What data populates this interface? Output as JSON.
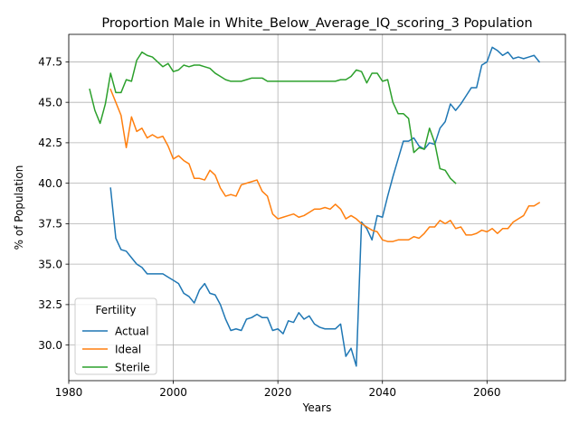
{
  "chart_data": {
    "type": "line",
    "title": "Proportion Male in White_Below_Average_IQ_scoring_3 Population",
    "xlabel": "Years",
    "ylabel": "% of Population",
    "xlim": [
      1980,
      2075
    ],
    "ylim": [
      27.8,
      49.2
    ],
    "xticks": [
      1980,
      2000,
      2020,
      2040,
      2060
    ],
    "yticks": [
      30.0,
      32.5,
      35.0,
      37.5,
      40.0,
      42.5,
      45.0,
      47.5
    ],
    "grid": true,
    "legend": {
      "title": "Fertility",
      "position": "lower-left"
    },
    "series": [
      {
        "name": "Actual",
        "color": "#1f77b4",
        "points": [
          [
            1988,
            39.7
          ],
          [
            1989,
            36.6
          ],
          [
            1990,
            35.9
          ],
          [
            1991,
            35.8
          ],
          [
            1992,
            35.4
          ],
          [
            1993,
            35.0
          ],
          [
            1994,
            34.8
          ],
          [
            1995,
            34.4
          ],
          [
            1996,
            34.4
          ],
          [
            1997,
            34.4
          ],
          [
            1998,
            34.4
          ],
          [
            1999,
            34.2
          ],
          [
            2000,
            34.0
          ],
          [
            2001,
            33.8
          ],
          [
            2002,
            33.2
          ],
          [
            2003,
            33.0
          ],
          [
            2004,
            32.6
          ],
          [
            2005,
            33.4
          ],
          [
            2006,
            33.8
          ],
          [
            2007,
            33.2
          ],
          [
            2008,
            33.1
          ],
          [
            2009,
            32.5
          ],
          [
            2010,
            31.6
          ],
          [
            2011,
            30.9
          ],
          [
            2012,
            31.0
          ],
          [
            2013,
            30.9
          ],
          [
            2014,
            31.6
          ],
          [
            2015,
            31.7
          ],
          [
            2016,
            31.9
          ],
          [
            2017,
            31.7
          ],
          [
            2018,
            31.7
          ],
          [
            2019,
            30.9
          ],
          [
            2020,
            31.0
          ],
          [
            2021,
            30.7
          ],
          [
            2022,
            31.5
          ],
          [
            2023,
            31.4
          ],
          [
            2024,
            32.0
          ],
          [
            2025,
            31.6
          ],
          [
            2026,
            31.8
          ],
          [
            2027,
            31.3
          ],
          [
            2028,
            31.1
          ],
          [
            2029,
            31.0
          ],
          [
            2030,
            31.0
          ],
          [
            2031,
            31.0
          ],
          [
            2032,
            31.3
          ],
          [
            2033,
            29.3
          ],
          [
            2034,
            29.8
          ],
          [
            2035,
            28.7
          ],
          [
            2036,
            37.6
          ],
          [
            2037,
            37.2
          ],
          [
            2038,
            36.5
          ],
          [
            2039,
            38.0
          ],
          [
            2040,
            37.9
          ],
          [
            2041,
            39.2
          ],
          [
            2042,
            40.4
          ],
          [
            2043,
            41.5
          ],
          [
            2044,
            42.6
          ],
          [
            2045,
            42.6
          ],
          [
            2046,
            42.8
          ],
          [
            2047,
            42.3
          ],
          [
            2048,
            42.1
          ],
          [
            2049,
            42.5
          ],
          [
            2050,
            42.4
          ],
          [
            2051,
            43.4
          ],
          [
            2052,
            43.8
          ],
          [
            2053,
            44.9
          ],
          [
            2054,
            44.5
          ],
          [
            2055,
            44.9
          ],
          [
            2056,
            45.4
          ],
          [
            2057,
            45.9
          ],
          [
            2058,
            45.9
          ],
          [
            2059,
            47.3
          ],
          [
            2060,
            47.5
          ],
          [
            2061,
            48.4
          ],
          [
            2062,
            48.2
          ],
          [
            2063,
            47.9
          ],
          [
            2064,
            48.1
          ],
          [
            2065,
            47.7
          ],
          [
            2066,
            47.8
          ],
          [
            2067,
            47.7
          ],
          [
            2068,
            47.8
          ],
          [
            2069,
            47.9
          ],
          [
            2070,
            47.5
          ]
        ]
      },
      {
        "name": "Ideal",
        "color": "#ff7f0e",
        "points": [
          [
            1988,
            45.8
          ],
          [
            1989,
            45.0
          ],
          [
            1990,
            44.2
          ],
          [
            1991,
            42.2
          ],
          [
            1992,
            44.1
          ],
          [
            1993,
            43.2
          ],
          [
            1994,
            43.4
          ],
          [
            1995,
            42.8
          ],
          [
            1996,
            43.0
          ],
          [
            1997,
            42.8
          ],
          [
            1998,
            42.9
          ],
          [
            1999,
            42.3
          ],
          [
            2000,
            41.5
          ],
          [
            2001,
            41.7
          ],
          [
            2002,
            41.4
          ],
          [
            2003,
            41.2
          ],
          [
            2004,
            40.3
          ],
          [
            2005,
            40.3
          ],
          [
            2006,
            40.2
          ],
          [
            2007,
            40.8
          ],
          [
            2008,
            40.5
          ],
          [
            2009,
            39.7
          ],
          [
            2010,
            39.2
          ],
          [
            2011,
            39.3
          ],
          [
            2012,
            39.2
          ],
          [
            2013,
            39.9
          ],
          [
            2014,
            40.0
          ],
          [
            2015,
            40.1
          ],
          [
            2016,
            40.2
          ],
          [
            2017,
            39.5
          ],
          [
            2018,
            39.2
          ],
          [
            2019,
            38.1
          ],
          [
            2020,
            37.8
          ],
          [
            2021,
            37.9
          ],
          [
            2022,
            38.0
          ],
          [
            2023,
            38.1
          ],
          [
            2024,
            37.9
          ],
          [
            2025,
            38.0
          ],
          [
            2026,
            38.2
          ],
          [
            2027,
            38.4
          ],
          [
            2028,
            38.4
          ],
          [
            2029,
            38.5
          ],
          [
            2030,
            38.4
          ],
          [
            2031,
            38.7
          ],
          [
            2032,
            38.4
          ],
          [
            2033,
            37.8
          ],
          [
            2034,
            38.0
          ],
          [
            2035,
            37.8
          ],
          [
            2036,
            37.5
          ],
          [
            2037,
            37.3
          ],
          [
            2038,
            37.1
          ],
          [
            2039,
            37.0
          ],
          [
            2040,
            36.5
          ],
          [
            2041,
            36.4
          ],
          [
            2042,
            36.4
          ],
          [
            2043,
            36.5
          ],
          [
            2044,
            36.5
          ],
          [
            2045,
            36.5
          ],
          [
            2046,
            36.7
          ],
          [
            2047,
            36.6
          ],
          [
            2048,
            36.9
          ],
          [
            2049,
            37.3
          ],
          [
            2050,
            37.3
          ],
          [
            2051,
            37.7
          ],
          [
            2052,
            37.5
          ],
          [
            2053,
            37.7
          ],
          [
            2054,
            37.2
          ],
          [
            2055,
            37.3
          ],
          [
            2056,
            36.8
          ],
          [
            2057,
            36.8
          ],
          [
            2058,
            36.9
          ],
          [
            2059,
            37.1
          ],
          [
            2060,
            37.0
          ],
          [
            2061,
            37.2
          ],
          [
            2062,
            36.9
          ],
          [
            2063,
            37.2
          ],
          [
            2064,
            37.2
          ],
          [
            2065,
            37.6
          ],
          [
            2066,
            37.8
          ],
          [
            2067,
            38.0
          ],
          [
            2068,
            38.6
          ],
          [
            2069,
            38.6
          ],
          [
            2070,
            38.8
          ]
        ]
      },
      {
        "name": "Sterile",
        "color": "#2ca02c",
        "points": [
          [
            1984,
            45.8
          ],
          [
            1985,
            44.5
          ],
          [
            1986,
            43.7
          ],
          [
            1987,
            44.9
          ],
          [
            1988,
            46.8
          ],
          [
            1989,
            45.6
          ],
          [
            1990,
            45.6
          ],
          [
            1991,
            46.4
          ],
          [
            1992,
            46.3
          ],
          [
            1993,
            47.6
          ],
          [
            1994,
            48.1
          ],
          [
            1995,
            47.9
          ],
          [
            1996,
            47.8
          ],
          [
            1997,
            47.5
          ],
          [
            1998,
            47.2
          ],
          [
            1999,
            47.4
          ],
          [
            2000,
            46.9
          ],
          [
            2001,
            47.0
          ],
          [
            2002,
            47.3
          ],
          [
            2003,
            47.2
          ],
          [
            2004,
            47.3
          ],
          [
            2005,
            47.3
          ],
          [
            2006,
            47.2
          ],
          [
            2007,
            47.1
          ],
          [
            2008,
            46.8
          ],
          [
            2009,
            46.6
          ],
          [
            2010,
            46.4
          ],
          [
            2011,
            46.3
          ],
          [
            2012,
            46.3
          ],
          [
            2013,
            46.3
          ],
          [
            2014,
            46.4
          ],
          [
            2015,
            46.5
          ],
          [
            2016,
            46.5
          ],
          [
            2017,
            46.5
          ],
          [
            2018,
            46.3
          ],
          [
            2019,
            46.3
          ],
          [
            2020,
            46.3
          ],
          [
            2021,
            46.3
          ],
          [
            2022,
            46.3
          ],
          [
            2023,
            46.3
          ],
          [
            2024,
            46.3
          ],
          [
            2025,
            46.3
          ],
          [
            2026,
            46.3
          ],
          [
            2027,
            46.3
          ],
          [
            2028,
            46.3
          ],
          [
            2029,
            46.3
          ],
          [
            2030,
            46.3
          ],
          [
            2031,
            46.3
          ],
          [
            2032,
            46.4
          ],
          [
            2033,
            46.4
          ],
          [
            2034,
            46.6
          ],
          [
            2035,
            47.0
          ],
          [
            2036,
            46.9
          ],
          [
            2037,
            46.2
          ],
          [
            2038,
            46.8
          ],
          [
            2039,
            46.8
          ],
          [
            2040,
            46.3
          ],
          [
            2041,
            46.4
          ],
          [
            2042,
            45.0
          ],
          [
            2043,
            44.3
          ],
          [
            2044,
            44.3
          ],
          [
            2045,
            44.0
          ],
          [
            2046,
            41.9
          ],
          [
            2047,
            42.2
          ],
          [
            2048,
            42.1
          ],
          [
            2049,
            43.4
          ],
          [
            2050,
            42.5
          ],
          [
            2051,
            40.9
          ],
          [
            2052,
            40.8
          ],
          [
            2053,
            40.3
          ],
          [
            2054,
            40.0
          ]
        ]
      }
    ]
  }
}
